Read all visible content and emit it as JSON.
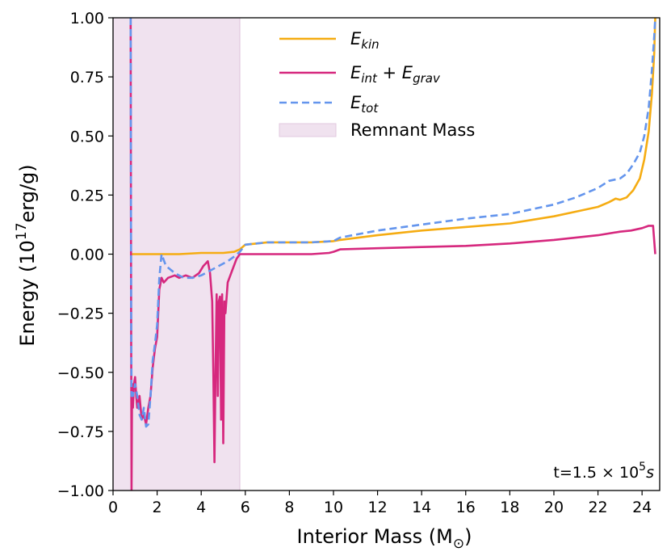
{
  "chart_data": {
    "type": "line",
    "title": "",
    "xlabel": "Interior Mass (M",
    "xlabel_sub": "⊙",
    "xlabel_close": ")",
    "ylabel": "Energy (10",
    "ylabel_sup": "17",
    "ylabel_tail": "erg/g)",
    "xlim": [
      0,
      24.8
    ],
    "ylim": [
      -1.0,
      1.0
    ],
    "xticks": [
      0,
      2,
      4,
      6,
      8,
      10,
      12,
      14,
      16,
      18,
      20,
      22,
      24
    ],
    "xtick_labels": [
      "0",
      "2",
      "4",
      "6",
      "8",
      "10",
      "12",
      "14",
      "16",
      "18",
      "20",
      "22",
      "24"
    ],
    "yticks": [
      -1.0,
      -0.75,
      -0.5,
      -0.25,
      0.0,
      0.25,
      0.5,
      0.75,
      1.0
    ],
    "ytick_labels": [
      "−1.00",
      "−0.75",
      "−0.50",
      "−0.25",
      "0.00",
      "0.25",
      "0.50",
      "0.75",
      "1.00"
    ],
    "annotation": {
      "text": "t=1.5 × 10",
      "sup": "5",
      "tail": "s"
    },
    "remnant_region": {
      "x0": 0.0,
      "x1": 5.75,
      "color": "#f0e2ef",
      "label": "Remnant Mass"
    },
    "series": [
      {
        "name": "E_kin",
        "legend_main": "E",
        "legend_sub": "kin",
        "color": "#f5ac12",
        "dash": false,
        "x": [
          0.85,
          1.0,
          2.0,
          3.0,
          4.0,
          5.0,
          5.5,
          5.75,
          6.0,
          7.0,
          8.0,
          9.0,
          10.0,
          10.3,
          12.0,
          14.0,
          16.0,
          18.0,
          20.0,
          21.0,
          22.0,
          22.5,
          22.8,
          23.0,
          23.3,
          23.6,
          23.9,
          24.1,
          24.3,
          24.45,
          24.55,
          24.6
        ],
        "y": [
          0.0,
          0.0,
          0.0,
          0.0,
          0.005,
          0.005,
          0.01,
          0.02,
          0.04,
          0.05,
          0.05,
          0.05,
          0.055,
          0.06,
          0.08,
          0.1,
          0.115,
          0.13,
          0.16,
          0.18,
          0.2,
          0.22,
          0.235,
          0.23,
          0.24,
          0.27,
          0.32,
          0.4,
          0.52,
          0.68,
          0.85,
          1.0
        ]
      },
      {
        "name": "E_int + E_grav",
        "legend_main": "E",
        "legend_sub": "int",
        "legend_plus": " + ",
        "legend_main2": "E",
        "legend_sub2": "grav",
        "color": "#d6287e",
        "dash": false,
        "x": [
          0.8,
          0.82,
          0.84,
          0.86,
          0.88,
          0.9,
          0.95,
          1.0,
          1.05,
          1.1,
          1.2,
          1.3,
          1.4,
          1.5,
          1.6,
          1.7,
          1.8,
          1.9,
          2.0,
          2.1,
          2.2,
          2.3,
          2.5,
          2.8,
          3.0,
          3.3,
          3.6,
          3.9,
          4.1,
          4.3,
          4.4,
          4.5,
          4.55,
          4.6,
          4.65,
          4.7,
          4.75,
          4.8,
          4.85,
          4.9,
          4.95,
          5.0,
          5.05,
          5.1,
          5.2,
          5.4,
          5.6,
          5.75,
          5.9,
          6.5,
          8.0,
          9.0,
          9.8,
          10.0,
          10.3,
          12.0,
          14.0,
          16.0,
          18.0,
          20.0,
          22.0,
          23.0,
          23.5,
          24.0,
          24.3,
          24.5,
          24.6
        ],
        "y": [
          1.0,
          -0.3,
          -1.0,
          -0.6,
          -0.55,
          -0.65,
          -0.55,
          -0.52,
          -0.6,
          -0.65,
          -0.6,
          -0.7,
          -0.68,
          -0.72,
          -0.65,
          -0.6,
          -0.48,
          -0.4,
          -0.35,
          -0.15,
          -0.1,
          -0.12,
          -0.1,
          -0.09,
          -0.1,
          -0.09,
          -0.1,
          -0.08,
          -0.05,
          -0.03,
          -0.08,
          -0.2,
          -0.5,
          -0.88,
          -0.5,
          -0.17,
          -0.6,
          -0.2,
          -0.18,
          -0.7,
          -0.17,
          -0.8,
          -0.2,
          -0.25,
          -0.12,
          -0.07,
          -0.02,
          0.0,
          0.0,
          0.0,
          0.0,
          0.0,
          0.005,
          0.01,
          0.02,
          0.025,
          0.03,
          0.035,
          0.045,
          0.06,
          0.08,
          0.095,
          0.1,
          0.11,
          0.12,
          0.12,
          0.0
        ]
      },
      {
        "name": "E_tot",
        "legend_main": "E",
        "legend_sub": "tot",
        "color": "#6495ed",
        "dash": true,
        "x": [
          0.8,
          0.82,
          0.84,
          0.86,
          0.9,
          1.0,
          1.1,
          1.2,
          1.3,
          1.4,
          1.5,
          1.6,
          1.7,
          1.8,
          1.9,
          2.0,
          2.1,
          2.2,
          2.4,
          2.8,
          3.2,
          3.6,
          4.0,
          4.4,
          4.8,
          5.2,
          5.5,
          5.75,
          6.0,
          7.0,
          8.0,
          9.0,
          10.0,
          10.3,
          12.0,
          14.0,
          16.0,
          18.0,
          20.0,
          21.0,
          22.0,
          22.5,
          23.0,
          23.3,
          23.6,
          23.9,
          24.1,
          24.3,
          24.45,
          24.55,
          24.6
        ],
        "y": [
          1.0,
          -0.2,
          -0.6,
          -0.58,
          -0.6,
          -0.55,
          -0.6,
          -0.68,
          -0.7,
          -0.65,
          -0.73,
          -0.72,
          -0.6,
          -0.45,
          -0.38,
          -0.3,
          -0.1,
          0.0,
          -0.05,
          -0.08,
          -0.1,
          -0.1,
          -0.09,
          -0.07,
          -0.05,
          -0.03,
          -0.01,
          0.01,
          0.04,
          0.05,
          0.05,
          0.05,
          0.055,
          0.07,
          0.1,
          0.125,
          0.15,
          0.17,
          0.21,
          0.24,
          0.28,
          0.31,
          0.32,
          0.34,
          0.38,
          0.43,
          0.5,
          0.62,
          0.78,
          0.92,
          1.0
        ]
      }
    ],
    "legend_position": "top-center"
  }
}
